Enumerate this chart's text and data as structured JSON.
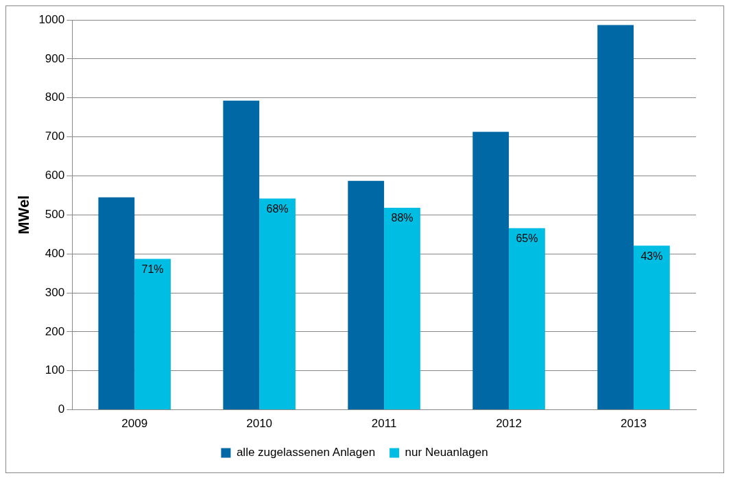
{
  "chart_data": {
    "type": "bar",
    "ylabel": "MWel",
    "categories": [
      "2009",
      "2010",
      "2011",
      "2012",
      "2013"
    ],
    "series": [
      {
        "name": "alle zugelassenen Anlagen",
        "color": "#0068a5",
        "values": [
          545,
          793,
          587,
          713,
          987
        ]
      },
      {
        "name": "nur Neuanlagen",
        "color": "#00bde3",
        "values": [
          387,
          542,
          518,
          466,
          421
        ]
      }
    ],
    "annotations": [
      {
        "text": "71%",
        "x": "2009",
        "y": 387
      },
      {
        "text": "68%",
        "x": "2010",
        "y": 542
      },
      {
        "text": "88%",
        "x": "2011",
        "y": 518
      },
      {
        "text": "65%",
        "x": "2012",
        "y": 466
      },
      {
        "text": "43%",
        "x": "2013",
        "y": 421
      }
    ],
    "ylim": [
      0,
      1000
    ],
    "yticks": [
      0,
      100,
      200,
      300,
      400,
      500,
      600,
      700,
      800,
      900,
      1000
    ],
    "grid": "y",
    "legend": "bottom"
  }
}
